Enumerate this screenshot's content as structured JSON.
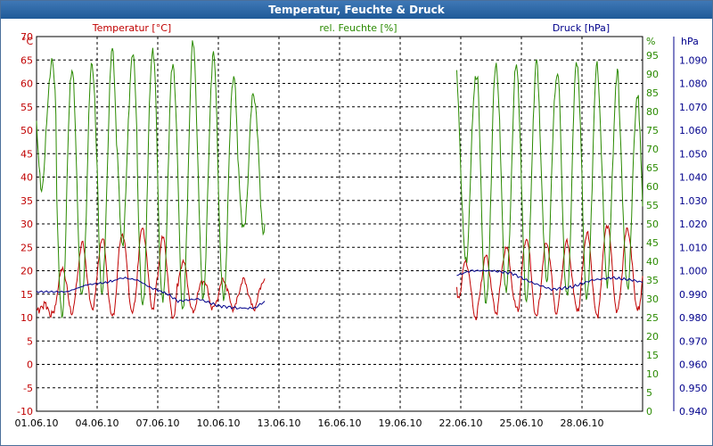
{
  "window": {
    "title": "Temperatur, Feuchte & Druck"
  },
  "chart_data": {
    "type": "line",
    "title": "Temperatur, Feuchte & Druck",
    "x_tick_labels": [
      "01.06.10",
      "04.06.10",
      "07.06.10",
      "10.06.10",
      "13.06.10",
      "16.06.10",
      "19.06.10",
      "22.06.10",
      "25.06.10",
      "28.06.10"
    ],
    "x_range_days": [
      0,
      30
    ],
    "left_axis": {
      "label": "Temperatur [°C]",
      "unit": "°C",
      "range": [
        -10,
        70
      ],
      "step": 5,
      "color": "#c00000"
    },
    "right_axis_1": {
      "label": "rel. Feuchte [%]",
      "unit": "%",
      "range": [
        0,
        100
      ],
      "step": 5,
      "color": "#2a8a00"
    },
    "right_axis_2": {
      "label": "Druck [hPa]",
      "unit": "hPa",
      "range": [
        940,
        1100
      ],
      "step": 10,
      "decimals": 3,
      "color": "#00008b"
    },
    "grid": true,
    "gap_days": [
      11.3,
      20.8
    ],
    "series": [
      {
        "name": "Temperatur",
        "axis": "left",
        "color": "#c00000",
        "segments": [
          {
            "start": 0,
            "end": 11.3,
            "mean": 18,
            "amplitude": 7,
            "ramp_from": 11,
            "ramp_days": 2.3,
            "peaks": [
              24,
              28,
              26,
              27,
              28,
              29,
              27,
              22,
              18
            ],
            "phase": 0.25
          },
          {
            "start": 20.8,
            "end": 30,
            "mean": 18,
            "amplitude": 7,
            "ramp_from": 16,
            "ramp_days": 0.2,
            "peaks": [
              22,
              23,
              25,
              27,
              26,
              26,
              28,
              30,
              29,
              28
            ],
            "phase": 0.25
          }
        ]
      },
      {
        "name": "rel. Feuchte",
        "axis": "right1",
        "color": "#2a8a00",
        "segments": [
          {
            "start": 0,
            "end": 11.3,
            "mean": 60,
            "amplitude": 30,
            "peaks": [
              93,
              92,
              93,
              96,
              95,
              97,
              93,
              98,
              95,
              90,
              85
            ],
            "troughs": [
              60,
              25,
              30,
              32,
              45,
              28,
              29,
              27,
              31,
              30,
              48
            ],
            "phase": 0.75
          },
          {
            "start": 20.8,
            "end": 30,
            "mean": 60,
            "amplitude": 30,
            "peaks": [
              90,
              93,
              92,
              93,
              90,
              94,
              92,
              90,
              85,
              80
            ],
            "troughs": [
              40,
              28,
              32,
              30,
              35,
              30,
              30,
              35,
              33,
              30
            ],
            "phase": 0.75
          }
        ]
      },
      {
        "name": "Druck",
        "axis": "right2",
        "color": "#00008b",
        "points": [
          [
            0,
            991
          ],
          [
            1.5,
            991
          ],
          [
            2.5,
            994
          ],
          [
            3.5,
            995
          ],
          [
            4.3,
            997
          ],
          [
            5.0,
            996
          ],
          [
            5.6,
            993
          ],
          [
            6.5,
            990
          ],
          [
            7.0,
            987
          ],
          [
            8.0,
            988
          ],
          [
            9.0,
            985
          ],
          [
            10.0,
            984
          ],
          [
            10.8,
            984
          ],
          [
            11.3,
            987
          ],
          [
            20.8,
            998
          ],
          [
            21.5,
            1000
          ],
          [
            22.5,
            1000
          ],
          [
            23.5,
            999
          ],
          [
            24.5,
            995
          ],
          [
            25.5,
            992
          ],
          [
            26.5,
            993
          ],
          [
            27.5,
            996
          ],
          [
            28.5,
            997
          ],
          [
            29.5,
            996
          ],
          [
            30,
            995
          ]
        ]
      }
    ]
  }
}
